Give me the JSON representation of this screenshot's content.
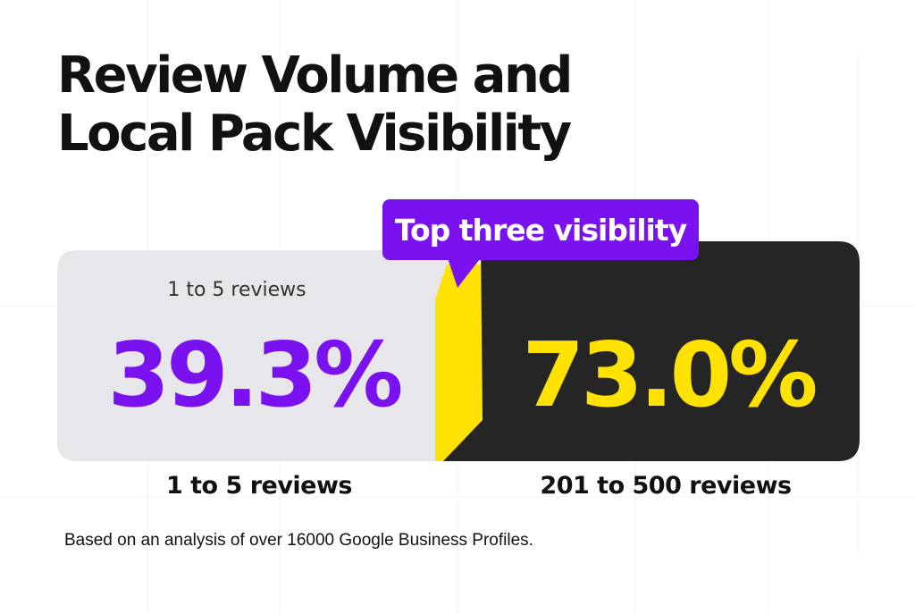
{
  "title": {
    "line1": "Review Volume and",
    "line2": "Local Pack Visibility"
  },
  "callout": {
    "label": "Top three visibility",
    "color": "#7a12f0"
  },
  "left_panel": {
    "top_label": "1 to 5 reviews",
    "value": "39.3%",
    "caption": "1 to 5 reviews",
    "background": "#e7e6ea",
    "value_color": "#7a12f0"
  },
  "right_panel": {
    "value": "73.0%",
    "caption": "201 to 500 reviews",
    "background": "#252525",
    "value_color": "#ffe200"
  },
  "footnote": "Based on an analysis of over 16000 Google Business Profiles.",
  "colors": {
    "accent_purple": "#7a12f0",
    "accent_yellow": "#ffe200",
    "dark_panel": "#252525",
    "light_panel": "#e7e6ea"
  }
}
